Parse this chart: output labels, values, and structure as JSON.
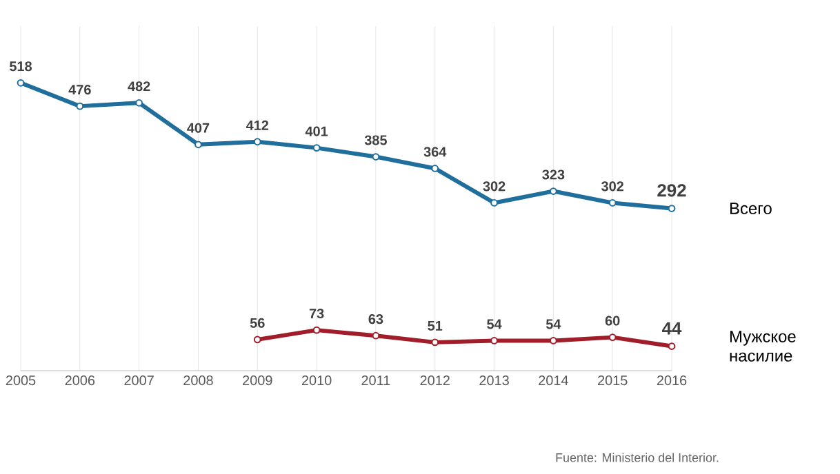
{
  "chart_data": {
    "type": "line",
    "categories": [
      "2005",
      "2006",
      "2007",
      "2008",
      "2009",
      "2010",
      "2011",
      "2012",
      "2013",
      "2014",
      "2015",
      "2016"
    ],
    "series": [
      {
        "name": "Всего",
        "color": "#1f6e9c",
        "values": [
          518,
          476,
          482,
          407,
          412,
          401,
          385,
          364,
          302,
          323,
          302,
          292
        ]
      },
      {
        "name": "Мужское насилие",
        "color": "#a11d2a",
        "values": [
          null,
          null,
          null,
          null,
          56,
          73,
          63,
          51,
          54,
          54,
          60,
          44
        ]
      }
    ],
    "ylim": [
      0,
      620
    ],
    "tick_labels": "x",
    "grid": "x",
    "marker": "circle",
    "line_style": "solid",
    "data_labels": true,
    "annotations": [
      "Fuente: Ministerio del Interior."
    ]
  }
}
